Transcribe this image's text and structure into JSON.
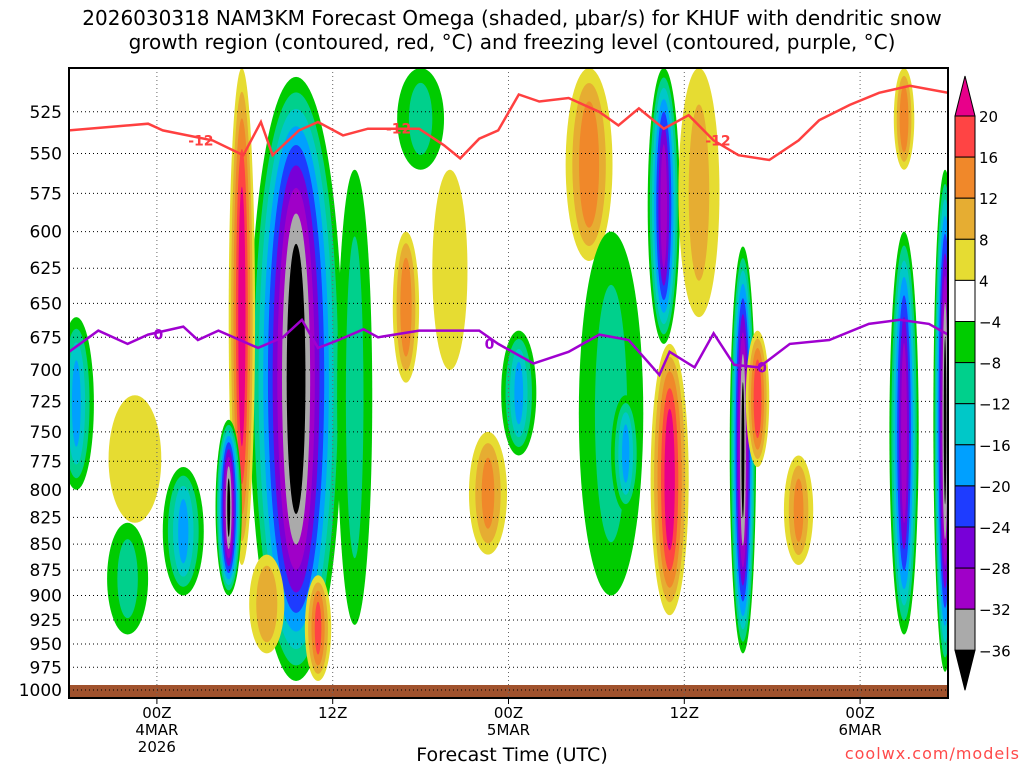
{
  "chart_data": {
    "type": "heatmap",
    "title_line1": "2026030318 NAM3KM Forecast Omega (shaded, μbar/s) for KHUF with dendritic snow",
    "title_line2": "growth region (contoured, red, °C) and freezing level (contoured, purple, °C)",
    "xlabel": "Forecast Time (UTC)",
    "credit": "coolwx.com/models",
    "x_range_hours": [
      0,
      60
    ],
    "y_range_mb": [
      500,
      1000
    ],
    "y_ticks": [
      525,
      550,
      575,
      600,
      625,
      650,
      675,
      700,
      725,
      750,
      775,
      800,
      825,
      850,
      875,
      900,
      925,
      950,
      975,
      1000
    ],
    "x_ticks": [
      {
        "hour": 6,
        "l1": "00Z",
        "l2": "4MAR",
        "l3": "2026"
      },
      {
        "hour": 18,
        "l1": "12Z",
        "l2": "",
        "l3": ""
      },
      {
        "hour": 30,
        "l1": "00Z",
        "l2": "5MAR",
        "l3": ""
      },
      {
        "hour": 42,
        "l1": "12Z",
        "l2": "",
        "l3": ""
      },
      {
        "hour": 54,
        "l1": "00Z",
        "l2": "6MAR",
        "l3": ""
      }
    ],
    "colorbar": {
      "labels": [
        "20",
        "16",
        "12",
        "8",
        "4",
        "-4",
        "-8",
        "-12",
        "-16",
        "-20",
        "-24",
        "-28",
        "-32",
        "-36"
      ],
      "colors": [
        "#e8008a",
        "#ff4444",
        "#f0882a",
        "#e6ad32",
        "#e6dc32",
        "#ffffff",
        "#00cc00",
        "#00d08c",
        "#00c8c8",
        "#00a0ff",
        "#1e3cff",
        "#7800d8",
        "#a000c8",
        "#aaaaaa",
        "#000000"
      ]
    },
    "omega_features": [
      {
        "hour": 15.5,
        "ptop": 505,
        "pbot": 990,
        "halfwidth": 3.2,
        "peak": -40
      },
      {
        "hour": 11.8,
        "ptop": 500,
        "pbot": 870,
        "halfwidth": 0.9,
        "peak": 22
      },
      {
        "hour": 41,
        "ptop": 680,
        "pbot": 920,
        "halfwidth": 1.3,
        "peak": 22
      },
      {
        "hour": 40.6,
        "ptop": 500,
        "pbot": 680,
        "halfwidth": 1.1,
        "peak": -30
      },
      {
        "hour": 46,
        "ptop": 610,
        "pbot": 960,
        "halfwidth": 0.9,
        "peak": -36
      },
      {
        "hour": 10.9,
        "ptop": 740,
        "pbot": 900,
        "halfwidth": 0.9,
        "peak": -36
      },
      {
        "hour": 57,
        "ptop": 600,
        "pbot": 940,
        "halfwidth": 1.0,
        "peak": -30
      },
      {
        "hour": 59.8,
        "ptop": 560,
        "pbot": 980,
        "halfwidth": 0.8,
        "peak": -36
      },
      {
        "hour": 35.5,
        "ptop": 500,
        "pbot": 620,
        "halfwidth": 1.6,
        "peak": 14
      },
      {
        "hour": 24,
        "ptop": 500,
        "pbot": 560,
        "halfwidth": 1.6,
        "peak": -8
      },
      {
        "hour": 23,
        "ptop": 600,
        "pbot": 710,
        "halfwidth": 0.9,
        "peak": 14
      },
      {
        "hour": 30.7,
        "ptop": 670,
        "pbot": 770,
        "halfwidth": 1.2,
        "peak": -16
      },
      {
        "hour": 28.6,
        "ptop": 750,
        "pbot": 860,
        "halfwidth": 1.3,
        "peak": 12
      },
      {
        "hour": 47,
        "ptop": 670,
        "pbot": 780,
        "halfwidth": 0.8,
        "peak": 18
      },
      {
        "hour": 49.8,
        "ptop": 770,
        "pbot": 870,
        "halfwidth": 1.0,
        "peak": 12
      },
      {
        "hour": 7.8,
        "ptop": 780,
        "pbot": 900,
        "halfwidth": 1.4,
        "peak": -16
      },
      {
        "hour": 17,
        "ptop": 880,
        "pbot": 990,
        "halfwidth": 0.9,
        "peak": 16
      },
      {
        "hour": 37,
        "ptop": 600,
        "pbot": 900,
        "halfwidth": 2.2,
        "peak": -8
      },
      {
        "hour": 38,
        "ptop": 720,
        "pbot": 820,
        "halfwidth": 1.0,
        "peak": -16
      },
      {
        "hour": 0.5,
        "ptop": 660,
        "pbot": 800,
        "halfwidth": 1.2,
        "peak": -16
      },
      {
        "hour": 4.5,
        "ptop": 720,
        "pbot": 830,
        "halfwidth": 1.8,
        "peak": 6
      },
      {
        "hour": 4,
        "ptop": 830,
        "pbot": 940,
        "halfwidth": 1.4,
        "peak": -8
      },
      {
        "hour": 19.5,
        "ptop": 560,
        "pbot": 930,
        "halfwidth": 1.2,
        "peak": -8
      },
      {
        "hour": 43,
        "ptop": 500,
        "pbot": 660,
        "halfwidth": 1.4,
        "peak": 8
      },
      {
        "hour": 57,
        "ptop": 500,
        "pbot": 560,
        "halfwidth": 0.7,
        "peak": 14
      },
      {
        "hour": 26,
        "ptop": 560,
        "pbot": 700,
        "halfwidth": 1.2,
        "peak": 6
      },
      {
        "hour": 13.5,
        "ptop": 860,
        "pbot": 960,
        "halfwidth": 1.2,
        "peak": 10
      }
    ],
    "dgz_contour": {
      "label": "-12",
      "label_hours": [
        9,
        22.5,
        44.3
      ],
      "points": [
        [
          0,
          536
        ],
        [
          5.4,
          532
        ],
        [
          6.4,
          536
        ],
        [
          9.8,
          542
        ],
        [
          11.9,
          551
        ],
        [
          13.1,
          531
        ],
        [
          13.9,
          551
        ],
        [
          15.7,
          536
        ],
        [
          17,
          531
        ],
        [
          18.7,
          539
        ],
        [
          20.4,
          535
        ],
        [
          23.9,
          535
        ],
        [
          25.6,
          545
        ],
        [
          26.7,
          553
        ],
        [
          28,
          541
        ],
        [
          29.3,
          536
        ],
        [
          30.7,
          515
        ],
        [
          32.1,
          519
        ],
        [
          34.1,
          517
        ],
        [
          36.2,
          525
        ],
        [
          37.5,
          533
        ],
        [
          38.9,
          523
        ],
        [
          40.6,
          535
        ],
        [
          42.3,
          527
        ],
        [
          44,
          542
        ],
        [
          45.7,
          551
        ],
        [
          47.8,
          554
        ],
        [
          49.8,
          542
        ],
        [
          51.2,
          530
        ],
        [
          53.3,
          521
        ],
        [
          55.3,
          514
        ],
        [
          57.4,
          510
        ],
        [
          60,
          514
        ]
      ]
    },
    "freezing_contour": {
      "label": "0",
      "label_hours": [
        6.1,
        28.7,
        47.3
      ],
      "points": [
        [
          0,
          686
        ],
        [
          2,
          670
        ],
        [
          4,
          680
        ],
        [
          5.4,
          673
        ],
        [
          7.8,
          667
        ],
        [
          8.8,
          677
        ],
        [
          10.2,
          670
        ],
        [
          12.9,
          683
        ],
        [
          14.6,
          675
        ],
        [
          15.9,
          662
        ],
        [
          17,
          683
        ],
        [
          18.4,
          677
        ],
        [
          20.1,
          669
        ],
        [
          21.1,
          675
        ],
        [
          23.9,
          670
        ],
        [
          28,
          670
        ],
        [
          29.3,
          680
        ],
        [
          31.7,
          695
        ],
        [
          34.1,
          686
        ],
        [
          36.2,
          673
        ],
        [
          38.2,
          677
        ],
        [
          40.3,
          704
        ],
        [
          41,
          686
        ],
        [
          42.7,
          698
        ],
        [
          44,
          672
        ],
        [
          45.4,
          696
        ],
        [
          47.1,
          698
        ],
        [
          49.2,
          680
        ],
        [
          51.9,
          677
        ],
        [
          54.6,
          665
        ],
        [
          56.7,
          662
        ],
        [
          58.7,
          665
        ],
        [
          60,
          673
        ]
      ]
    }
  }
}
